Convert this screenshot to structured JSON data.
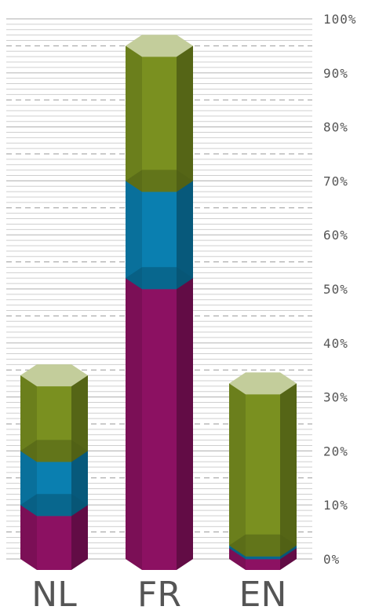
{
  "chart_data": {
    "type": "bar",
    "stacked": true,
    "style": "3d hexagonal prism columns",
    "categories": [
      "NL",
      "FR",
      "EN"
    ],
    "series": [
      {
        "color": "#8c1162",
        "values": [
          10,
          52,
          2
        ]
      },
      {
        "color": "#0a7fb0",
        "values": [
          10,
          18,
          0.5
        ]
      },
      {
        "color": "#7a9020",
        "values": [
          14,
          25,
          30
        ]
      }
    ],
    "y_ticks": [
      "0%",
      "10%",
      "20%",
      "30%",
      "40%",
      "50%",
      "60%",
      "70%",
      "80%",
      "90%",
      "100%"
    ],
    "ylim": [
      0,
      100
    ],
    "grid": "horizontal lines every 1%, dashed every 5%",
    "axis_position": "right"
  }
}
